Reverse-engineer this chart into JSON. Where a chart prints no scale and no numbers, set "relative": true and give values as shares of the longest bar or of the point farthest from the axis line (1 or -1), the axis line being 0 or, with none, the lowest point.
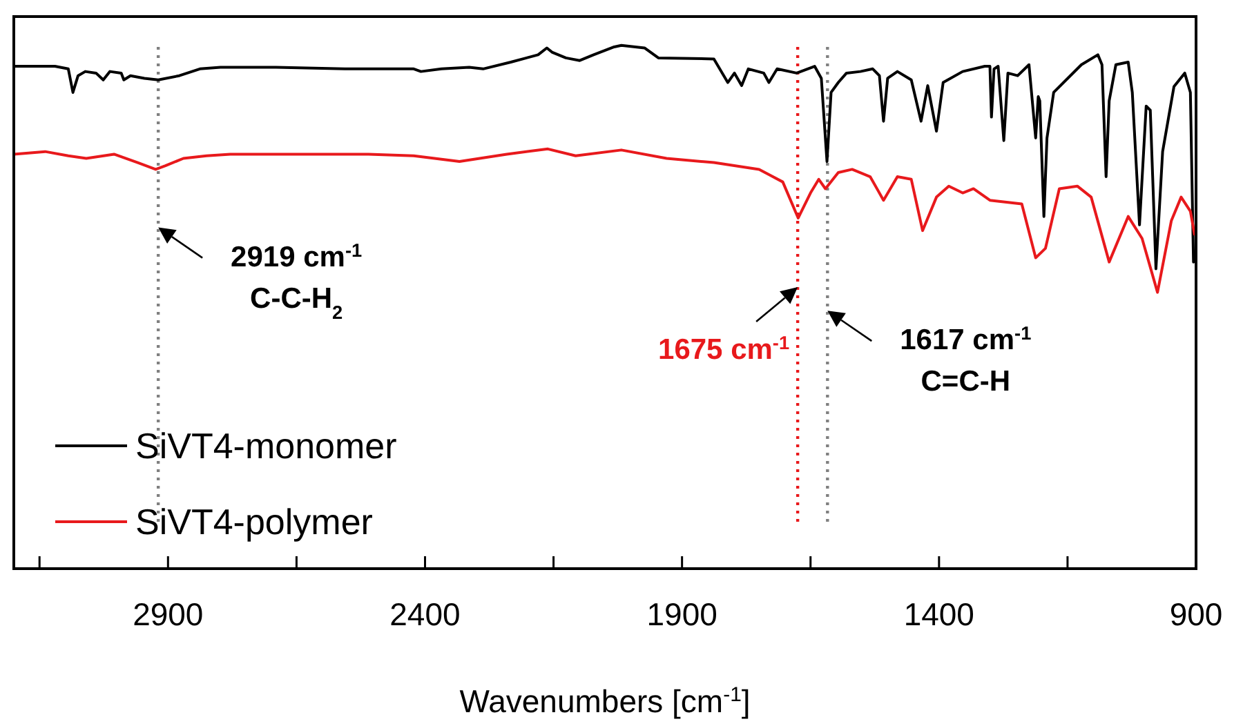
{
  "chart_data": {
    "type": "line",
    "relative": true,
    "xlabel": "Wavenumbers [cm$^{-1}$]",
    "xlim": [
      3200,
      900
    ],
    "xticks": [
      {
        "value": 3150,
        "label": null
      },
      2900,
      {
        "value": 2650,
        "label": null
      },
      2400,
      {
        "value": 2150,
        "label": null
      },
      1900,
      {
        "value": 1650,
        "label": null
      },
      1400,
      {
        "value": 1150,
        "label": null
      },
      900
    ],
    "legend": "bottom left",
    "grid": false,
    "line_style": "solid",
    "series": [
      {
        "name": "SiVT4-monomer",
        "color": "#000000",
        "x": [
          3200,
          3120,
          3094,
          3085,
          3075,
          3061,
          3040,
          3026,
          3013,
          2991,
          2986,
          2973,
          2946,
          2919,
          2878,
          2838,
          2798,
          2690,
          2556,
          2422,
          2408,
          2368,
          2314,
          2287,
          2233,
          2180,
          2163,
          2153,
          2126,
          2099,
          2072,
          2032,
          2018,
          1973,
          1946,
          1838,
          1811,
          1798,
          1784,
          1771,
          1741,
          1731,
          1715,
          1677,
          1642,
          1629,
          1618,
          1610,
          1596,
          1580,
          1553,
          1529,
          1516,
          1508,
          1500,
          1481,
          1454,
          1435,
          1422,
          1405,
          1392,
          1354,
          1311,
          1301,
          1298,
          1293,
          1285,
          1274,
          1266,
          1247,
          1225,
          1212,
          1207,
          1204,
          1196,
          1190,
          1177,
          1123,
          1091,
          1083,
          1075,
          1069,
          1056,
          1032,
          1024,
          1010,
          997,
          989,
          978,
          965,
          943,
          922,
          911,
          905
        ],
        "values": [
          0.96,
          0.96,
          0.955,
          0.91,
          0.942,
          0.95,
          0.947,
          0.934,
          0.95,
          0.947,
          0.934,
          0.942,
          0.937,
          0.934,
          0.942,
          0.955,
          0.958,
          0.958,
          0.955,
          0.955,
          0.95,
          0.955,
          0.958,
          0.955,
          0.968,
          0.982,
          0.995,
          0.987,
          0.976,
          0.971,
          0.982,
          0.997,
          1.0,
          0.995,
          0.976,
          0.974,
          0.929,
          0.947,
          0.923,
          0.955,
          0.947,
          0.929,
          0.955,
          0.947,
          0.96,
          0.937,
          0.778,
          0.91,
          0.929,
          0.947,
          0.95,
          0.955,
          0.942,
          0.855,
          0.937,
          0.95,
          0.934,
          0.855,
          0.923,
          0.836,
          0.929,
          0.95,
          0.96,
          0.96,
          0.863,
          0.955,
          0.96,
          0.818,
          0.947,
          0.942,
          0.963,
          0.823,
          0.902,
          0.894,
          0.673,
          0.823,
          0.91,
          0.963,
          0.982,
          0.963,
          0.749,
          0.894,
          0.963,
          0.968,
          0.91,
          0.657,
          0.884,
          0.876,
          0.573,
          0.797,
          0.921,
          0.947,
          0.91,
          0.586
        ]
      },
      {
        "name": "SiVT4-polymer",
        "color": "#e8191c",
        "x": [
          3200,
          3139,
          3094,
          3059,
          3005,
          2959,
          2924,
          2905,
          2870,
          2825,
          2779,
          2510,
          2422,
          2333,
          2241,
          2161,
          2107,
          2018,
          1930,
          1838,
          1750,
          1704,
          1674,
          1650,
          1634,
          1621,
          1596,
          1569,
          1534,
          1508,
          1481,
          1454,
          1432,
          1405,
          1381,
          1354,
          1333,
          1301,
          1239,
          1212,
          1193,
          1166,
          1131,
          1104,
          1069,
          1032,
          1005,
          975,
          948,
          929,
          911,
          903
        ],
        "values": [
          0.792,
          0.797,
          0.789,
          0.784,
          0.792,
          0.776,
          0.763,
          0.77,
          0.784,
          0.789,
          0.792,
          0.792,
          0.789,
          0.778,
          0.792,
          0.802,
          0.789,
          0.8,
          0.784,
          0.776,
          0.763,
          0.739,
          0.67,
          0.718,
          0.744,
          0.726,
          0.757,
          0.763,
          0.749,
          0.704,
          0.749,
          0.744,
          0.646,
          0.71,
          0.731,
          0.718,
          0.726,
          0.704,
          0.697,
          0.594,
          0.612,
          0.726,
          0.731,
          0.71,
          0.586,
          0.673,
          0.631,
          0.528,
          0.665,
          0.71,
          0.683,
          0.639
        ]
      }
    ],
    "ref_lines": [
      {
        "axis": "x",
        "value": 2919,
        "color": "#808080",
        "line_style": "dotted"
      },
      {
        "axis": "x",
        "value": 1675,
        "color": "#e8191c",
        "line_style": "dotted"
      },
      {
        "axis": "x",
        "value": 1617,
        "color": "#808080",
        "line_style": "dotted"
      }
    ],
    "annotations": [
      {
        "text": "2919 cm$^{-1}$",
        "x": 2919,
        "y": 0.652
      },
      "C-C-H$_{2}$",
      {
        "text": "1675 cm$^{-1}$",
        "x": 1675,
        "y": 0.538
      },
      {
        "text": "1617 cm$^{-1}$",
        "x": 1617,
        "y": 0.493
      },
      "C=C-H"
    ]
  }
}
